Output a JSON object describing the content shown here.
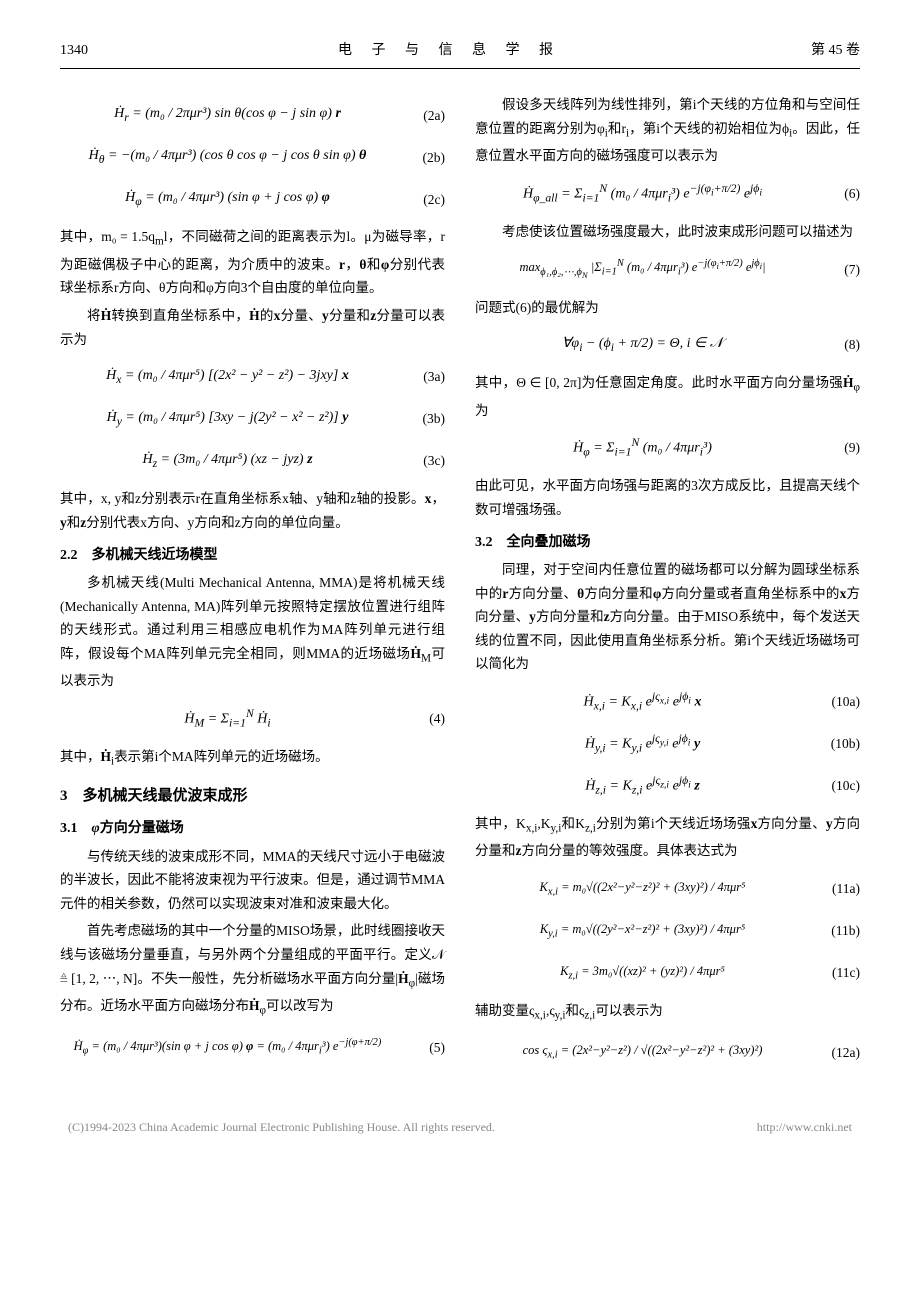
{
  "header": {
    "page_num": "1340",
    "journal": "电 子 与 信 息 学 报",
    "volume": "第 45 卷"
  },
  "left": {
    "eq2a": {
      "body": "Ḣ<sub>r</sub> = (m₀ / 2πμr³) sin θ(cos φ − j sin φ) <b>r</b>",
      "num": "(2a)"
    },
    "eq2b": {
      "body": "Ḣ<sub>θ</sub> = −(m₀ / 4πμr³) (cos θ cos φ − j cos θ sin φ) <b>θ</b>",
      "num": "(2b)"
    },
    "eq2c": {
      "body": "Ḣ<sub>φ</sub> = (m₀ / 4πμr³) (sin φ + j cos φ) <b>φ</b>",
      "num": "(2c)"
    },
    "p1": "其中，m₀ = 1.5q<sub>m</sub>l，不同磁荷之间的距离表示为l。μ为磁导率，r为距磁偶极子中心的距离，为介质中的波束。<b>r</b>，<b>θ</b>和<b>φ</b>分别代表球坐标系r方向、θ方向和φ方向3个自由度的单位向量。",
    "p2": "将<b>Ḣ</b>转换到直角坐标系中，<b>Ḣ</b>的<b>x</b>分量、<b>y</b>分量和<b>z</b>分量可以表示为",
    "eq3a": {
      "body": "Ḣ<sub>x</sub> = (m₀ / 4πμr⁵) [(2x² − y² − z²) − 3jxy] <b>x</b>",
      "num": "(3a)"
    },
    "eq3b": {
      "body": "Ḣ<sub>y</sub> = (m₀ / 4πμr⁵) [3xy − j(2y² − x² − z²)] <b>y</b>",
      "num": "(3b)"
    },
    "eq3c": {
      "body": "Ḣ<sub>z</sub> = (3m₀ / 4πμr⁵) (xz − jyz) <b>z</b>",
      "num": "(3c)"
    },
    "p3": "其中，x, y和z分别表示r在直角坐标系x轴、y轴和z轴的投影。<b>x</b>，<b>y</b>和<b>z</b>分别代表x方向、y方向和z方向的单位向量。",
    "sec22": "2.2　多机械天线近场模型",
    "p4": "多机械天线(Multi Mechanical Antenna, MMA)是将机械天线(Mechanically Antenna, MA)阵列单元按照特定摆放位置进行组阵的天线形式。通过利用三相感应电机作为MA阵列单元进行组阵，假设每个MA阵列单元完全相同，则MMA的近场磁场<b>Ḣ</b><sub>M</sub>可以表示为",
    "eq4": {
      "body": "Ḣ<sub>M</sub> = Σ<sub>i=1</sub><sup>N</sup> Ḣ<sub>i</sub>",
      "num": "(4)"
    },
    "p5": "其中，<b>Ḣ</b><sub>i</sub>表示第i个MA阵列单元的近场磁场。",
    "sec3": "3　多机械天线最优波束成形",
    "sec31": "3.1　<i>φ</i>方向分量磁场",
    "p6": "与传统天线的波束成形不同，MMA的天线尺寸远小于电磁波的半波长，因此不能将波束视为平行波束。但是，通过调节MMA元件的相关参数，仍然可以实现波束对准和波束最大化。",
    "p7": "首先考虑磁场的其中一个分量的MISO场景，此时线圈接收天线与该磁场分量垂直，与另外两个分量组成的平面平行。定义𝒩 ≜ [1, 2, ⋯, N]。不失一般性，先分析磁场水平面方向分量|<b>Ḣ</b><sub>φ</sub>|磁场分布。近场水平面方向磁场分布<b>Ḣ</b><sub>φ</sub>可以改写为",
    "eq5": {
      "body": "Ḣ<sub>φ</sub> = (m₀ / 4πμr³)(sin φ + j cos φ) <b>φ</b> = (m₀ / 4πμr<sub>i</sub>³) e<sup>−j(φ+π/2)</sup>",
      "num": "(5)"
    }
  },
  "right": {
    "p1": "假设多天线阵列为线性排列，第i个天线的方位角和与空间任意位置的距离分别为φ<sub>i</sub>和r<sub>i</sub>，第i个天线的初始相位为ϕ<sub>i</sub>。因此，任意位置水平面方向的磁场强度可以表示为",
    "eq6": {
      "body": "Ḣ<sub>φ_all</sub> = Σ<sub>i=1</sub><sup>N</sup> (m₀ / 4πμr<sub>i</sub>³) e<sup>−j(φ<sub>i</sub>+π/2)</sup> e<sup>jϕ<sub>i</sub></sup>",
      "num": "(6)"
    },
    "p2": "考虑使该位置磁场强度最大，此时波束成形问题可以描述为",
    "eq7": {
      "body": "max<sub>ϕ₁,ϕ₂,⋯,ϕ<sub>N</sub></sub> |Σ<sub>i=1</sub><sup>N</sup> (m₀ / 4πμr<sub>i</sub>³) e<sup>−j(φ<sub>i</sub>+π/2)</sup> e<sup>jϕ<sub>i</sub></sup>|",
      "num": "(7)"
    },
    "p3": "问题式(6)的最优解为",
    "eq8": {
      "body": "∀φ<sub>i</sub> − (ϕ<sub>i</sub> + π/2) = Θ, i ∈ 𝒩",
      "num": "(8)"
    },
    "p4": "其中，Θ ∈ [0, 2π]为任意固定角度。此时水平面方向分量场强<b>Ḣ</b><sub>φ</sub>为",
    "eq9": {
      "body": "Ḣ<sub>φ</sub> = Σ<sub>i=1</sub><sup>N</sup> (m₀ / 4πμr<sub>i</sub>³)",
      "num": "(9)"
    },
    "p5": "由此可见，水平面方向场强与距离的3次方成反比，且提高天线个数可增强场强。",
    "sec32": "3.2　全向叠加磁场",
    "p6": "同理，对于空间内任意位置的磁场都可以分解为圆球坐标系中的<b>r</b>方向分量、<b>θ</b>方向分量和<b>φ</b>方向分量或者直角坐标系中的<b>x</b>方向分量、<b>y</b>方向分量和<b>z</b>方向分量。由于MISO系统中，每个发送天线的位置不同，因此使用直角坐标系分析。第i个天线近场磁场可以简化为",
    "eq10a": {
      "body": "Ḣ<sub>x,i</sub> = K<sub>x,i</sub> e<sup>jς<sub>x,i</sub></sup> e<sup>jϕ<sub>i</sub></sup> <b>x</b>",
      "num": "(10a)"
    },
    "eq10b": {
      "body": "Ḣ<sub>y,i</sub> = K<sub>y,i</sub> e<sup>jς<sub>y,i</sub></sup> e<sup>jϕ<sub>i</sub></sup> <b>y</b>",
      "num": "(10b)"
    },
    "eq10c": {
      "body": "Ḣ<sub>z,i</sub> = K<sub>z,i</sub> e<sup>jς<sub>z,i</sub></sup> e<sup>jϕ<sub>i</sub></sup> <b>z</b>",
      "num": "(10c)"
    },
    "p7": "其中，K<sub>x,i</sub>,K<sub>y,i</sub>和K<sub>z,i</sub>分别为第i个天线近场场强<b>x</b>方向分量、<b>y</b>方向分量和<b>z</b>方向分量的等效强度。具体表达式为",
    "eq11a": {
      "body": "K<sub>x,i</sub> = m₀√((2x²−y²−z²)² + (3xy)²) / 4πμr⁵",
      "num": "(11a)"
    },
    "eq11b": {
      "body": "K<sub>y,i</sub> = m₀√((2y²−x²−z²)² + (3xy)²) / 4πμr⁵",
      "num": "(11b)"
    },
    "eq11c": {
      "body": "K<sub>z,i</sub> = 3m₀√((xz)² + (yz)²) / 4πμr⁵",
      "num": "(11c)"
    },
    "p8": "辅助变量ς<sub>x,i</sub>,ς<sub>y,i</sub>和ς<sub>z,i</sub>可以表示为",
    "eq12a": {
      "body": "cos ς<sub>x,i</sub> = (2x²−y²−z²) / √((2x²−y²−z²)² + (3xy)²)",
      "num": "(12a)"
    }
  },
  "footer": {
    "left": "(C)1994-2023 China Academic Journal Electronic Publishing House. All rights reserved.",
    "right": "http://www.cnki.net"
  }
}
